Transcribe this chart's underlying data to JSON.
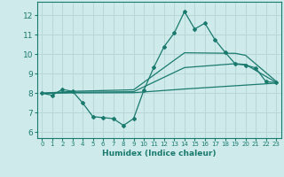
{
  "xlabel": "Humidex (Indice chaleur)",
  "background_color": "#ceeaea",
  "grid_color": "#b8d8d8",
  "line_color": "#1a7a6e",
  "xlim": [
    -0.5,
    23.5
  ],
  "ylim": [
    5.7,
    12.7
  ],
  "yticks": [
    6,
    7,
    8,
    9,
    10,
    11,
    12
  ],
  "xticks": [
    0,
    1,
    2,
    3,
    4,
    5,
    6,
    7,
    8,
    9,
    10,
    11,
    12,
    13,
    14,
    15,
    16,
    17,
    18,
    19,
    20,
    21,
    22,
    23
  ],
  "series_main": {
    "x": [
      0,
      1,
      2,
      3,
      4,
      5,
      6,
      7,
      8,
      9,
      10,
      11,
      12,
      13,
      14,
      15,
      16,
      17,
      18,
      19,
      20,
      21,
      22,
      23
    ],
    "y": [
      8.0,
      7.9,
      8.2,
      8.1,
      7.5,
      6.8,
      6.75,
      6.7,
      6.35,
      6.7,
      8.15,
      9.35,
      10.4,
      11.1,
      12.2,
      11.3,
      11.6,
      10.75,
      10.1,
      9.5,
      9.45,
      9.3,
      8.6,
      8.55
    ]
  },
  "series_smooth": [
    {
      "x": [
        0,
        3,
        9,
        14,
        19,
        20,
        23
      ],
      "y": [
        8.0,
        8.1,
        8.18,
        10.08,
        10.05,
        9.95,
        8.62
      ]
    },
    {
      "x": [
        0,
        3,
        9,
        14,
        19,
        20,
        23
      ],
      "y": [
        8.0,
        8.05,
        8.08,
        9.32,
        9.52,
        9.48,
        8.56
      ]
    },
    {
      "x": [
        0,
        3,
        9,
        14,
        23
      ],
      "y": [
        8.0,
        8.02,
        8.03,
        8.22,
        8.52
      ]
    }
  ],
  "marker_style": "D",
  "markersize": 2.0,
  "linewidth": 0.9,
  "xlabel_fontsize": 6.5,
  "tick_fontsize_x": 5.0,
  "tick_fontsize_y": 6.5
}
